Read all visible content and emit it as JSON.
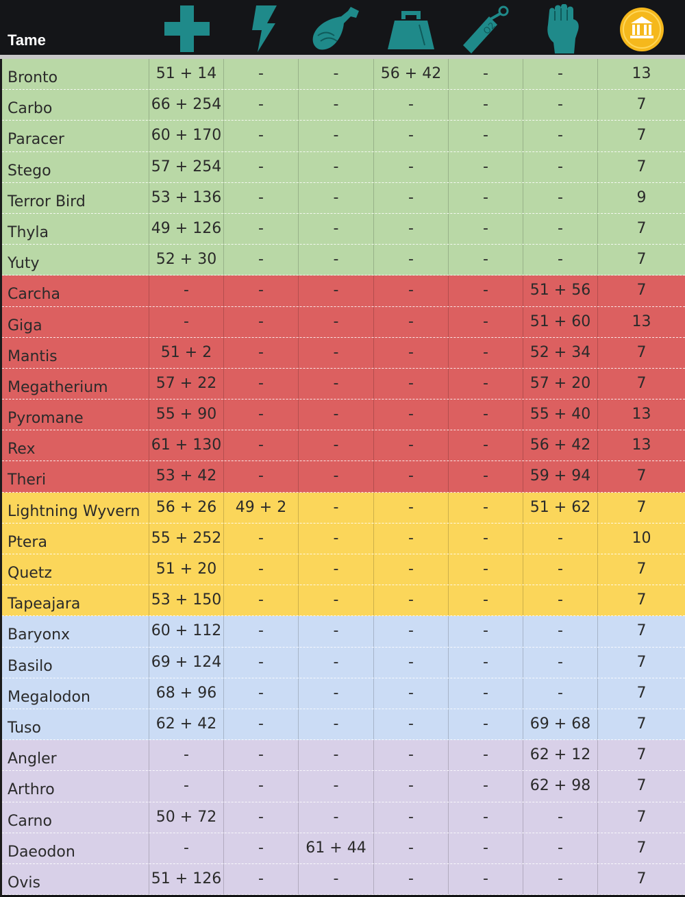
{
  "header": {
    "tame_label": "Tame",
    "columns": [
      {
        "icon": "health-cross-icon",
        "color": "#1f8a8a"
      },
      {
        "icon": "lightning-bolt-icon",
        "color": "#1f8a8a"
      },
      {
        "icon": "meat-icon",
        "color": "#1f8a8a"
      },
      {
        "icon": "weight-icon",
        "color": "#1f8a8a"
      },
      {
        "icon": "oxygen-tank-icon",
        "color": "#1f8a8a"
      },
      {
        "icon": "fist-melee-icon",
        "color": "#1f8a8a"
      },
      {
        "icon": "gold-coin-bank-icon",
        "color": "#f5b81c"
      }
    ]
  },
  "colors": {
    "green": "#b9d8a6",
    "red": "#dc6060",
    "yellow": "#fbd65a",
    "blue": "#cbdcf5",
    "purple": "#d8d0e8"
  },
  "rows": [
    {
      "name": "Bronto",
      "group": "green",
      "values": [
        "51 + 14",
        "-",
        "-",
        "56 + 42",
        "-",
        "-",
        "13"
      ]
    },
    {
      "name": "Carbo",
      "group": "green",
      "values": [
        "66 + 254",
        "-",
        "-",
        "-",
        "-",
        "-",
        "7"
      ]
    },
    {
      "name": "Paracer",
      "group": "green",
      "values": [
        "60 + 170",
        "-",
        "-",
        "-",
        "-",
        "-",
        "7"
      ]
    },
    {
      "name": "Stego",
      "group": "green",
      "values": [
        "57 + 254",
        "-",
        "-",
        "-",
        "-",
        "-",
        "7"
      ]
    },
    {
      "name": "Terror Bird",
      "group": "green",
      "values": [
        "53 + 136",
        "-",
        "-",
        "-",
        "-",
        "-",
        "9"
      ]
    },
    {
      "name": "Thyla",
      "group": "green",
      "values": [
        "49 + 126",
        "-",
        "-",
        "-",
        "-",
        "-",
        "7"
      ]
    },
    {
      "name": "Yuty",
      "group": "green",
      "values": [
        "52 + 30",
        "-",
        "-",
        "-",
        "-",
        "-",
        "7"
      ]
    },
    {
      "name": "Carcha",
      "group": "red",
      "values": [
        "-",
        "-",
        "-",
        "-",
        "-",
        "51 + 56",
        "7"
      ]
    },
    {
      "name": "Giga",
      "group": "red",
      "values": [
        "-",
        "-",
        "-",
        "-",
        "-",
        "51 + 60",
        "13"
      ]
    },
    {
      "name": "Mantis",
      "group": "red",
      "values": [
        "51 + 2",
        "-",
        "-",
        "-",
        "-",
        "52 + 34",
        "7"
      ]
    },
    {
      "name": "Megatherium",
      "group": "red",
      "values": [
        "57 + 22",
        "-",
        "-",
        "-",
        "-",
        "57 + 20",
        "7"
      ]
    },
    {
      "name": "Pyromane",
      "group": "red",
      "values": [
        "55 + 90",
        "-",
        "-",
        "-",
        "-",
        "55 + 40",
        "13"
      ]
    },
    {
      "name": "Rex",
      "group": "red",
      "values": [
        "61 + 130",
        "-",
        "-",
        "-",
        "-",
        "56 + 42",
        "13"
      ]
    },
    {
      "name": "Theri",
      "group": "red",
      "values": [
        "53 + 42",
        "-",
        "-",
        "-",
        "-",
        "59 + 94",
        "7"
      ]
    },
    {
      "name": "Lightning Wyvern",
      "group": "yellow",
      "values": [
        "56 + 26",
        "49 + 2",
        "-",
        "-",
        "-",
        "51 + 62",
        "7"
      ]
    },
    {
      "name": "Ptera",
      "group": "yellow",
      "values": [
        "55 + 252",
        "-",
        "-",
        "-",
        "-",
        "-",
        "10"
      ]
    },
    {
      "name": "Quetz",
      "group": "yellow",
      "values": [
        "51 + 20",
        "-",
        "-",
        "-",
        "-",
        "-",
        "7"
      ]
    },
    {
      "name": "Tapeajara",
      "group": "yellow",
      "values": [
        "53 + 150",
        "-",
        "-",
        "-",
        "-",
        "-",
        "7"
      ]
    },
    {
      "name": "Baryonx",
      "group": "blue",
      "values": [
        "60 + 112",
        "-",
        "-",
        "-",
        "-",
        "-",
        "7"
      ]
    },
    {
      "name": "Basilo",
      "group": "blue",
      "values": [
        "69 + 124",
        "-",
        "-",
        "-",
        "-",
        "-",
        "7"
      ]
    },
    {
      "name": "Megalodon",
      "group": "blue",
      "values": [
        "68 + 96",
        "-",
        "-",
        "-",
        "-",
        "-",
        "7"
      ]
    },
    {
      "name": "Tuso",
      "group": "blue",
      "values": [
        "62 + 42",
        "-",
        "-",
        "-",
        "-",
        "69 + 68",
        "7"
      ]
    },
    {
      "name": "Angler",
      "group": "purple",
      "values": [
        "-",
        "-",
        "-",
        "-",
        "-",
        "62 + 12",
        "7"
      ]
    },
    {
      "name": "Arthro",
      "group": "purple",
      "values": [
        "-",
        "-",
        "-",
        "-",
        "-",
        "62 + 98",
        "7"
      ]
    },
    {
      "name": "Carno",
      "group": "purple",
      "values": [
        "50 + 72",
        "-",
        "-",
        "-",
        "-",
        "-",
        "7"
      ]
    },
    {
      "name": "Daeodon",
      "group": "purple",
      "values": [
        "-",
        "-",
        "61 + 44",
        "-",
        "-",
        "-",
        "7"
      ]
    },
    {
      "name": "Ovis",
      "group": "purple",
      "values": [
        "51 + 126",
        "-",
        "-",
        "-",
        "-",
        "-",
        "7"
      ]
    }
  ]
}
